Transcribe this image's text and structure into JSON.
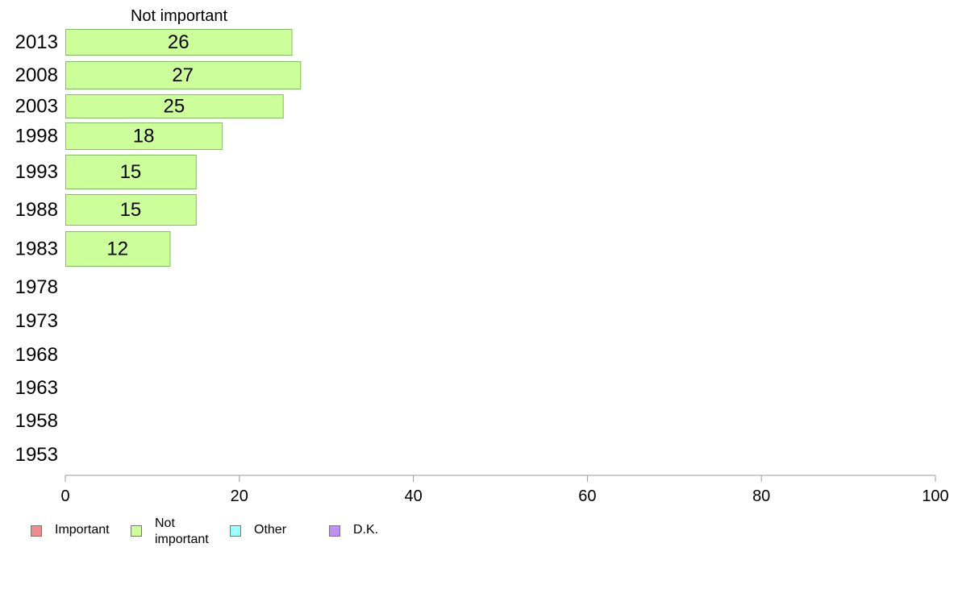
{
  "chart_data": {
    "type": "bar",
    "orientation": "horizontal",
    "title": "Not important",
    "categories": [
      "2013",
      "2008",
      "2003",
      "1998",
      "1993",
      "1988",
      "1983",
      "1978",
      "1973",
      "1968",
      "1963",
      "1958",
      "1953"
    ],
    "series": [
      {
        "name": "Not important",
        "values": [
          26,
          27,
          25,
          18,
          15,
          15,
          12,
          null,
          null,
          null,
          null,
          null,
          null
        ]
      }
    ],
    "xlim": [
      0,
      100
    ],
    "xticks": [
      0,
      20,
      40,
      60,
      80,
      100
    ],
    "grid": false,
    "bar_color": "#ccff99",
    "bar_border_color": "#7fbf5f"
  },
  "legend": {
    "items": [
      {
        "label": "Important",
        "color": "#f28c8c"
      },
      {
        "label": "Not important",
        "label_lines": [
          "Not",
          "important"
        ],
        "color": "#ccff99"
      },
      {
        "label": "Other",
        "color": "#99ffff"
      },
      {
        "label": "D.K.",
        "color": "#bf8fff"
      }
    ]
  }
}
